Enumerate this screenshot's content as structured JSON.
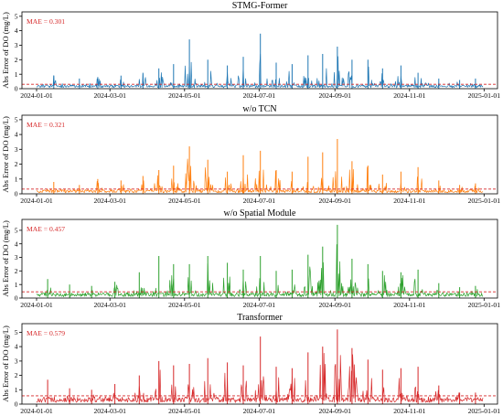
{
  "chart_data": [
    {
      "type": "line",
      "title": "STMG-Former",
      "ylabel": "Abs Error of DO (mg/L)",
      "annotation": "MAE = 0.301",
      "mae": 0.301,
      "color": "#1f77b4",
      "mae_line_color": "#d62728",
      "x_range": [
        "2023-12-20",
        "2025-01-12"
      ],
      "x_ticks": [
        "2024-01-01",
        "2024-03-01",
        "2024-05-01",
        "2024-07-01",
        "2024-09-01",
        "2024-11-01",
        "2025-01-01"
      ],
      "ylim": [
        0,
        5.3
      ],
      "y_ticks": [
        0,
        1,
        2,
        3,
        4,
        5
      ],
      "grid": false,
      "peaks": [
        {
          "x": "2024-01-15",
          "y": 0.9
        },
        {
          "x": "2024-02-05",
          "y": 0.7
        },
        {
          "x": "2024-02-20",
          "y": 0.8
        },
        {
          "x": "2024-03-10",
          "y": 0.9
        },
        {
          "x": "2024-03-28",
          "y": 1.1
        },
        {
          "x": "2024-04-10",
          "y": 1.4
        },
        {
          "x": "2024-04-22",
          "y": 1.7
        },
        {
          "x": "2024-05-05",
          "y": 3.4
        },
        {
          "x": "2024-05-20",
          "y": 2.0
        },
        {
          "x": "2024-06-05",
          "y": 1.6
        },
        {
          "x": "2024-06-18",
          "y": 2.2
        },
        {
          "x": "2024-07-02",
          "y": 3.8
        },
        {
          "x": "2024-07-15",
          "y": 1.8
        },
        {
          "x": "2024-07-28",
          "y": 1.7
        },
        {
          "x": "2024-08-10",
          "y": 2.3
        },
        {
          "x": "2024-08-22",
          "y": 2.4
        },
        {
          "x": "2024-09-03",
          "y": 2.9
        },
        {
          "x": "2024-09-15",
          "y": 2.0
        },
        {
          "x": "2024-09-28",
          "y": 2.0
        },
        {
          "x": "2024-10-10",
          "y": 1.4
        },
        {
          "x": "2024-10-25",
          "y": 1.6
        },
        {
          "x": "2024-11-08",
          "y": 1.1
        },
        {
          "x": "2024-11-25",
          "y": 0.7
        },
        {
          "x": "2024-12-12",
          "y": 0.6
        },
        {
          "x": "2024-12-25",
          "y": 0.7
        }
      ]
    },
    {
      "type": "line",
      "title": "w/o TCN",
      "ylabel": "Abs Error of DO (mg/L)",
      "annotation": "MAE = 0.321",
      "mae": 0.321,
      "color": "#ff7f0e",
      "mae_line_color": "#d62728",
      "x_range": [
        "2023-12-20",
        "2025-01-12"
      ],
      "x_ticks": [
        "2024-01-01",
        "2024-03-01",
        "2024-05-01",
        "2024-07-01",
        "2024-09-01",
        "2024-11-01",
        "2025-01-01"
      ],
      "ylim": [
        0,
        5.3
      ],
      "y_ticks": [
        0,
        1,
        2,
        3,
        4,
        5
      ],
      "grid": false,
      "peaks": [
        {
          "x": "2024-01-15",
          "y": 0.8
        },
        {
          "x": "2024-02-05",
          "y": 0.6
        },
        {
          "x": "2024-02-20",
          "y": 1.0
        },
        {
          "x": "2024-03-10",
          "y": 0.9
        },
        {
          "x": "2024-03-28",
          "y": 1.2
        },
        {
          "x": "2024-04-10",
          "y": 1.6
        },
        {
          "x": "2024-04-22",
          "y": 1.9
        },
        {
          "x": "2024-05-05",
          "y": 3.2
        },
        {
          "x": "2024-05-20",
          "y": 2.3
        },
        {
          "x": "2024-06-05",
          "y": 1.5
        },
        {
          "x": "2024-06-18",
          "y": 2.6
        },
        {
          "x": "2024-07-02",
          "y": 2.9
        },
        {
          "x": "2024-07-15",
          "y": 1.6
        },
        {
          "x": "2024-07-28",
          "y": 1.5
        },
        {
          "x": "2024-08-10",
          "y": 2.5
        },
        {
          "x": "2024-08-22",
          "y": 2.8
        },
        {
          "x": "2024-09-03",
          "y": 3.7
        },
        {
          "x": "2024-09-15",
          "y": 2.2
        },
        {
          "x": "2024-09-28",
          "y": 1.9
        },
        {
          "x": "2024-10-10",
          "y": 1.3
        },
        {
          "x": "2024-10-25",
          "y": 1.5
        },
        {
          "x": "2024-11-08",
          "y": 1.8
        },
        {
          "x": "2024-11-25",
          "y": 0.9
        },
        {
          "x": "2024-12-12",
          "y": 0.6
        },
        {
          "x": "2024-12-25",
          "y": 0.7
        }
      ]
    },
    {
      "type": "line",
      "title": "w/o Spatial Module",
      "ylabel": "Abs Error of DO (mg/L)",
      "annotation": "MAE = 0.457",
      "mae": 0.457,
      "color": "#2ca02c",
      "mae_line_color": "#d62728",
      "x_range": [
        "2023-12-20",
        "2025-01-12"
      ],
      "x_ticks": [
        "2024-01-01",
        "2024-03-01",
        "2024-05-01",
        "2024-07-01",
        "2024-09-01",
        "2024-11-01",
        "2025-01-01"
      ],
      "ylim": [
        0,
        5.8
      ],
      "y_ticks": [
        0,
        1,
        2,
        3,
        4,
        5
      ],
      "grid": false,
      "peaks": [
        {
          "x": "2024-01-10",
          "y": 1.4
        },
        {
          "x": "2024-01-28",
          "y": 1.0
        },
        {
          "x": "2024-02-15",
          "y": 0.9
        },
        {
          "x": "2024-03-05",
          "y": 1.2
        },
        {
          "x": "2024-03-25",
          "y": 1.9
        },
        {
          "x": "2024-04-10",
          "y": 3.1
        },
        {
          "x": "2024-04-22",
          "y": 2.5
        },
        {
          "x": "2024-05-05",
          "y": 2.5
        },
        {
          "x": "2024-05-20",
          "y": 3.1
        },
        {
          "x": "2024-06-05",
          "y": 2.6
        },
        {
          "x": "2024-06-18",
          "y": 2.1
        },
        {
          "x": "2024-07-02",
          "y": 3.1
        },
        {
          "x": "2024-07-15",
          "y": 2.0
        },
        {
          "x": "2024-07-28",
          "y": 2.1
        },
        {
          "x": "2024-08-10",
          "y": 3.2
        },
        {
          "x": "2024-08-22",
          "y": 3.8
        },
        {
          "x": "2024-09-03",
          "y": 5.4
        },
        {
          "x": "2024-09-15",
          "y": 2.9
        },
        {
          "x": "2024-09-28",
          "y": 2.5
        },
        {
          "x": "2024-10-10",
          "y": 2.0
        },
        {
          "x": "2024-10-25",
          "y": 1.9
        },
        {
          "x": "2024-11-08",
          "y": 2.1
        },
        {
          "x": "2024-11-25",
          "y": 1.1
        },
        {
          "x": "2024-12-12",
          "y": 0.8
        },
        {
          "x": "2024-12-25",
          "y": 0.9
        }
      ]
    },
    {
      "type": "line",
      "title": "Transformer",
      "ylabel": "Abs Error of DO (mg/L)",
      "annotation": "MAE = 0.579",
      "mae": 0.579,
      "color": "#d62728",
      "mae_line_color": "#d62728",
      "x_range": [
        "2023-12-20",
        "2025-01-12"
      ],
      "x_ticks": [
        "2024-01-01",
        "2024-03-01",
        "2024-05-01",
        "2024-07-01",
        "2024-09-01",
        "2024-11-01",
        "2025-01-01"
      ],
      "ylim": [
        0,
        5.6
      ],
      "y_ticks": [
        0,
        1,
        2,
        3,
        4,
        5
      ],
      "grid": false,
      "peaks": [
        {
          "x": "2024-01-10",
          "y": 1.7
        },
        {
          "x": "2024-01-28",
          "y": 1.1
        },
        {
          "x": "2024-02-15",
          "y": 1.0
        },
        {
          "x": "2024-03-05",
          "y": 1.4
        },
        {
          "x": "2024-03-25",
          "y": 2.0
        },
        {
          "x": "2024-04-10",
          "y": 3.0
        },
        {
          "x": "2024-04-22",
          "y": 2.7
        },
        {
          "x": "2024-05-05",
          "y": 2.8
        },
        {
          "x": "2024-05-20",
          "y": 3.2
        },
        {
          "x": "2024-06-05",
          "y": 2.9
        },
        {
          "x": "2024-06-18",
          "y": 2.7
        },
        {
          "x": "2024-07-02",
          "y": 4.7
        },
        {
          "x": "2024-07-15",
          "y": 2.6
        },
        {
          "x": "2024-07-28",
          "y": 2.5
        },
        {
          "x": "2024-08-10",
          "y": 3.6
        },
        {
          "x": "2024-08-22",
          "y": 4.0
        },
        {
          "x": "2024-09-03",
          "y": 5.2
        },
        {
          "x": "2024-09-15",
          "y": 3.9
        },
        {
          "x": "2024-09-28",
          "y": 3.1
        },
        {
          "x": "2024-10-10",
          "y": 2.4
        },
        {
          "x": "2024-10-25",
          "y": 2.5
        },
        {
          "x": "2024-11-08",
          "y": 2.6
        },
        {
          "x": "2024-11-25",
          "y": 1.3
        },
        {
          "x": "2024-12-12",
          "y": 0.8
        },
        {
          "x": "2024-12-25",
          "y": 0.8
        }
      ]
    }
  ]
}
